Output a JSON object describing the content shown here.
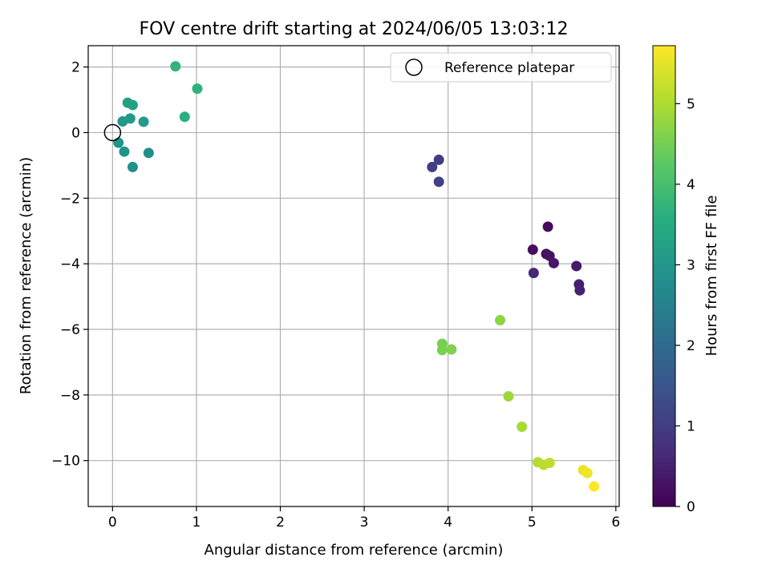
{
  "chart_data": {
    "type": "scatter",
    "title": "FOV centre drift starting at 2024/06/05 13:03:12",
    "xlabel": "Angular distance from reference (arcmin)",
    "ylabel": "Rotation from reference (arcmin)",
    "xlim": [
      -0.29,
      6.04
    ],
    "ylim": [
      -11.4,
      2.65
    ],
    "xticks": [
      0,
      1,
      2,
      3,
      4,
      5,
      6
    ],
    "yticks": [
      2,
      0,
      -2,
      -4,
      -6,
      -8,
      -10
    ],
    "ytick_labels": [
      "2",
      "0",
      "−2",
      "−4",
      "−6",
      "−8",
      "−10"
    ],
    "grid": true,
    "legend": {
      "position": "top-right",
      "label": "Reference platepar"
    },
    "reference_point": {
      "x": 0,
      "y": 0
    },
    "colorbar": {
      "label": "Hours from first FF file",
      "colormap": "viridis",
      "min": 0,
      "max": 5.72,
      "ticks": [
        0,
        1,
        2,
        3,
        4,
        5
      ]
    },
    "points": [
      {
        "x": 5.19,
        "y": -2.87,
        "c": 0.15
      },
      {
        "x": 5.01,
        "y": -3.57,
        "c": 0.2
      },
      {
        "x": 5.17,
        "y": -3.7,
        "c": 0.25
      },
      {
        "x": 5.21,
        "y": -3.76,
        "c": 0.3
      },
      {
        "x": 5.26,
        "y": -3.98,
        "c": 0.35
      },
      {
        "x": 5.53,
        "y": -4.07,
        "c": 0.4
      },
      {
        "x": 5.56,
        "y": -4.63,
        "c": 0.45
      },
      {
        "x": 5.57,
        "y": -4.81,
        "c": 0.5
      },
      {
        "x": 5.02,
        "y": -4.28,
        "c": 0.6
      },
      {
        "x": 3.89,
        "y": -0.83,
        "c": 1.0
      },
      {
        "x": 3.81,
        "y": -1.05,
        "c": 1.05
      },
      {
        "x": 3.89,
        "y": -1.5,
        "c": 1.1
      },
      {
        "x": 0.43,
        "y": -0.62,
        "c": 2.8
      },
      {
        "x": 0.24,
        "y": -1.05,
        "c": 2.85
      },
      {
        "x": 0.14,
        "y": -0.58,
        "c": 2.9
      },
      {
        "x": 0.07,
        "y": -0.31,
        "c": 2.95
      },
      {
        "x": 0.12,
        "y": 0.34,
        "c": 3.0
      },
      {
        "x": 0.21,
        "y": 0.43,
        "c": 3.05
      },
      {
        "x": 0.37,
        "y": 0.33,
        "c": 3.1
      },
      {
        "x": 0.18,
        "y": 0.91,
        "c": 3.2
      },
      {
        "x": 0.24,
        "y": 0.84,
        "c": 3.25
      },
      {
        "x": 0.86,
        "y": 0.48,
        "c": 3.6
      },
      {
        "x": 1.01,
        "y": 1.34,
        "c": 3.65
      },
      {
        "x": 0.75,
        "y": 2.02,
        "c": 3.7
      },
      {
        "x": 4.62,
        "y": -5.72,
        "c": 4.7
      },
      {
        "x": 3.93,
        "y": -6.44,
        "c": 4.5
      },
      {
        "x": 3.93,
        "y": -6.63,
        "c": 4.55
      },
      {
        "x": 4.04,
        "y": -6.61,
        "c": 4.6
      },
      {
        "x": 4.72,
        "y": -8.04,
        "c": 4.85
      },
      {
        "x": 4.88,
        "y": -8.97,
        "c": 4.95
      },
      {
        "x": 5.07,
        "y": -10.05,
        "c": 5.05
      },
      {
        "x": 5.14,
        "y": -10.13,
        "c": 5.1
      },
      {
        "x": 5.21,
        "y": -10.07,
        "c": 5.15
      },
      {
        "x": 5.61,
        "y": -10.29,
        "c": 5.55
      },
      {
        "x": 5.66,
        "y": -10.38,
        "c": 5.6
      },
      {
        "x": 5.74,
        "y": -10.79,
        "c": 5.7
      }
    ]
  }
}
